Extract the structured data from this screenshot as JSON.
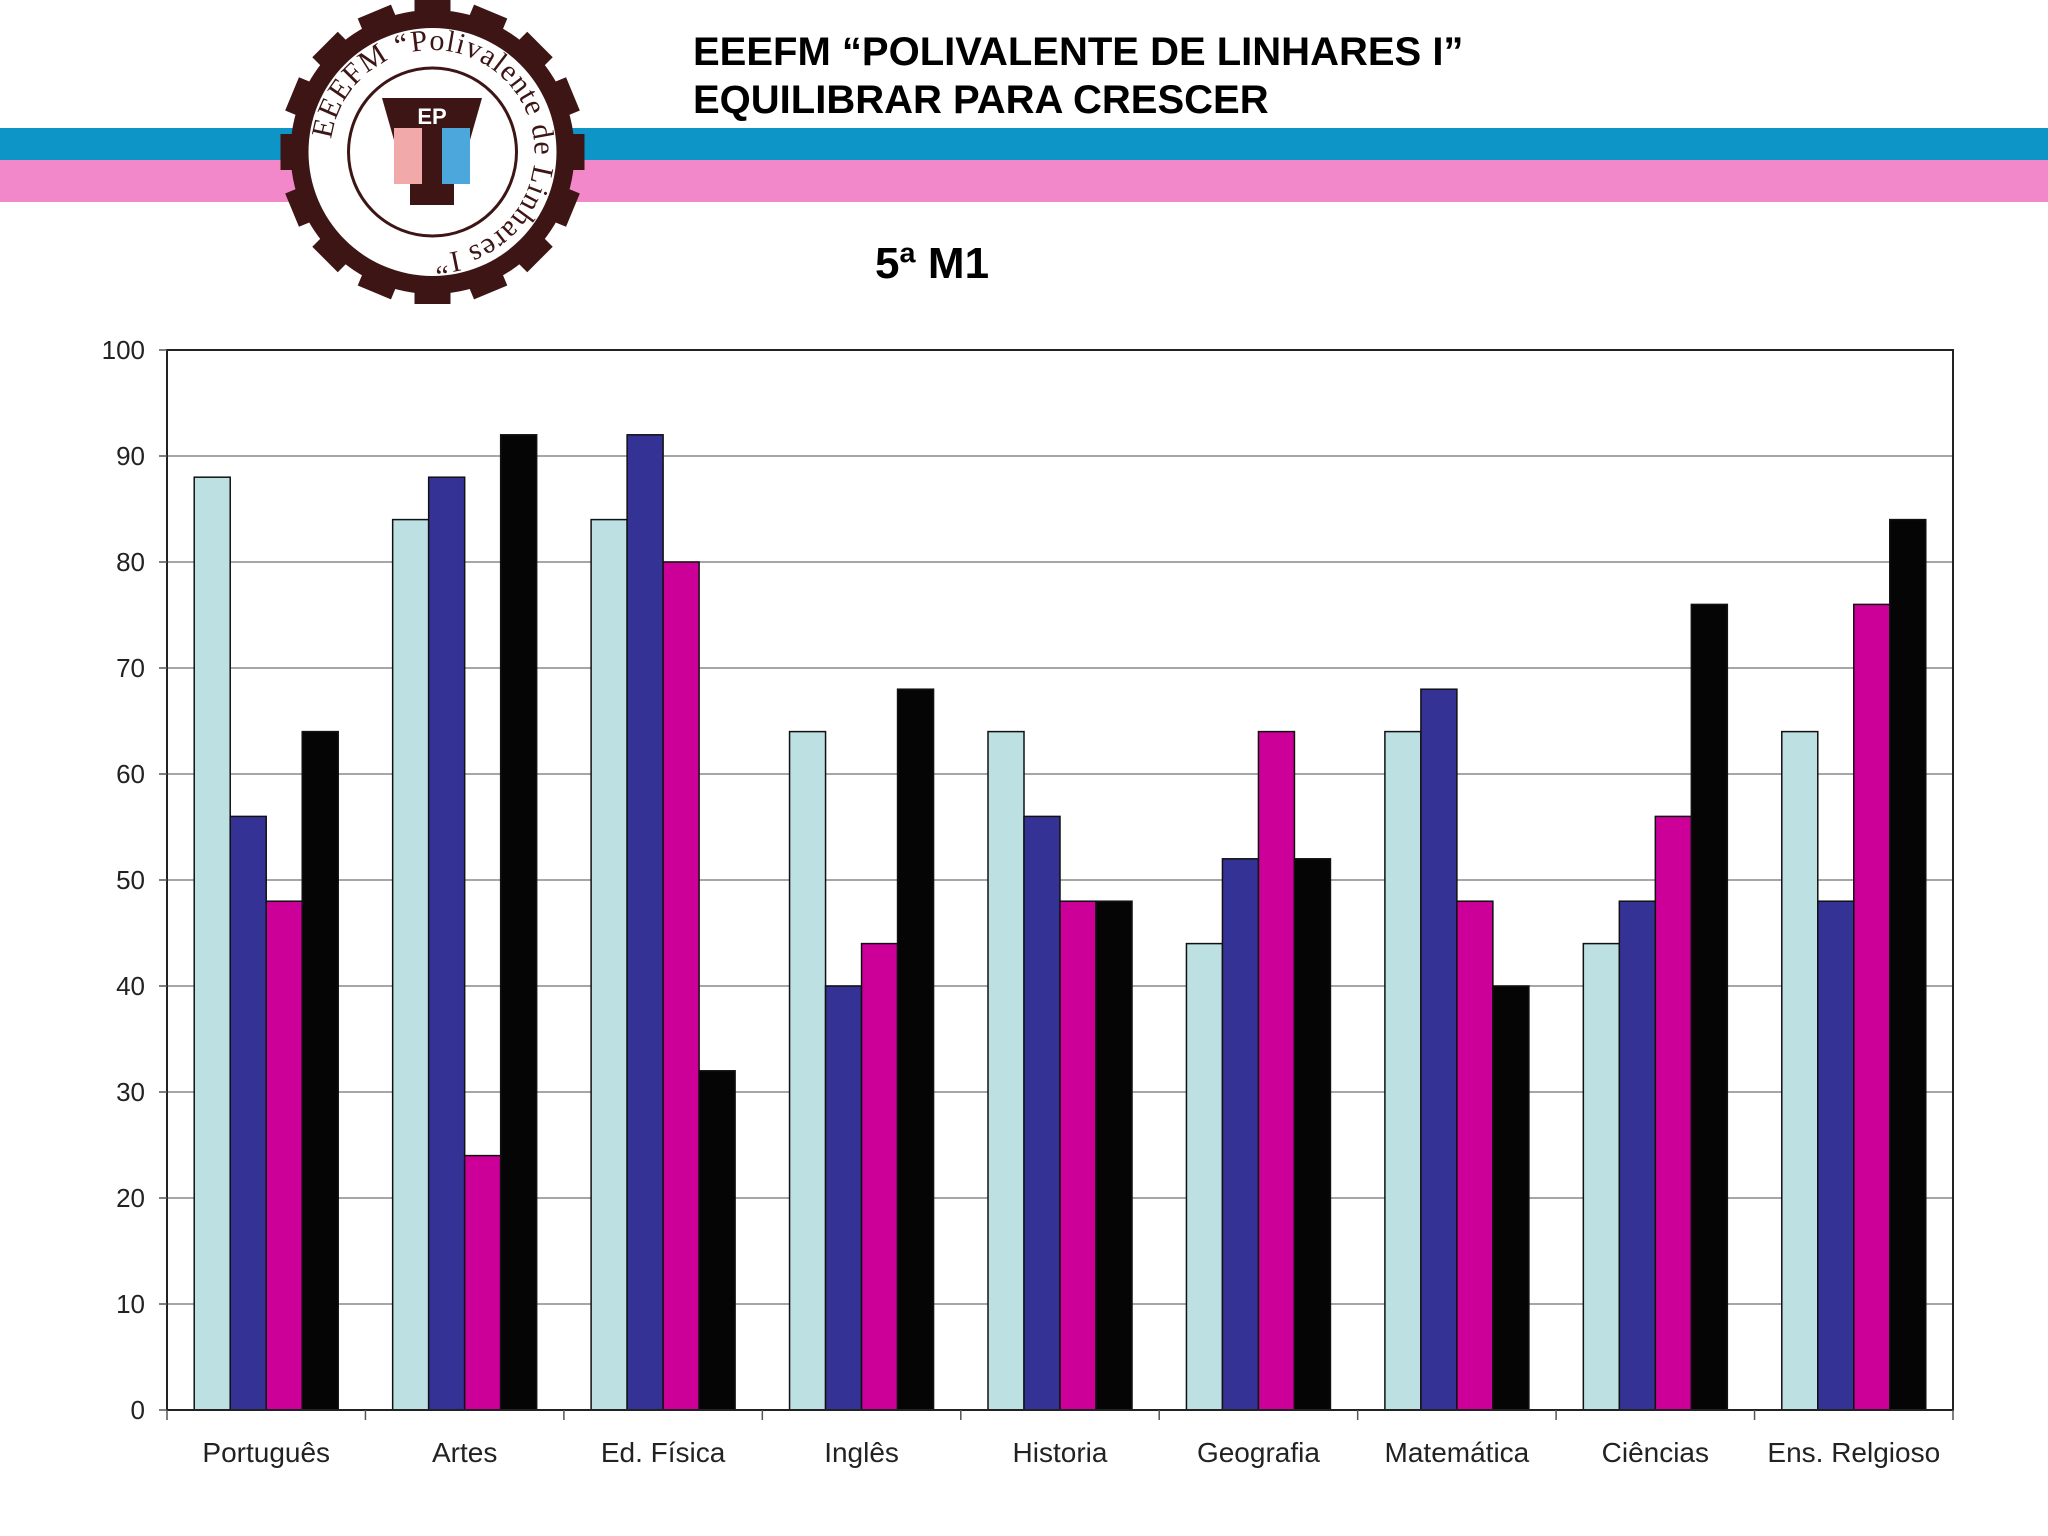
{
  "header": {
    "school_line": "EEEFM “POLIVALENTE DE LINHARES I”",
    "motto_line": "EQUILIBRAR PARA CRESCER"
  },
  "logo": {
    "ring_text": "EEEFM “Polivalente de Linhares I”",
    "initials": "EP"
  },
  "colors": {
    "band_blue": "#0e95c8",
    "band_pink": "#f287c9",
    "logo_brown": "#3d1515"
  },
  "chart_data": {
    "type": "bar",
    "title": "5ª M1",
    "categories": [
      "Português",
      "Artes",
      "Ed. Física",
      "Inglês",
      "Historia",
      "Geografia",
      "Matemática",
      "Ciências",
      "Ens. Relgioso"
    ],
    "series": [
      {
        "color": "#bde0e3",
        "values": [
          88,
          84,
          84,
          64,
          64,
          44,
          64,
          44,
          64
        ]
      },
      {
        "color": "#353296",
        "values": [
          56,
          88,
          92,
          40,
          56,
          52,
          68,
          48,
          48
        ]
      },
      {
        "color": "#cc0099",
        "values": [
          48,
          24,
          80,
          44,
          48,
          64,
          48,
          56,
          76
        ]
      },
      {
        "color": "#050505",
        "values": [
          64,
          92,
          32,
          68,
          48,
          52,
          40,
          76,
          84
        ]
      }
    ],
    "ylim": [
      0,
      100
    ],
    "yticks": [
      "0",
      "10",
      "20",
      "30",
      "40",
      "50",
      "60",
      "70",
      "80",
      "90",
      "100"
    ],
    "grid": true,
    "xlabel": "",
    "ylabel": ""
  }
}
